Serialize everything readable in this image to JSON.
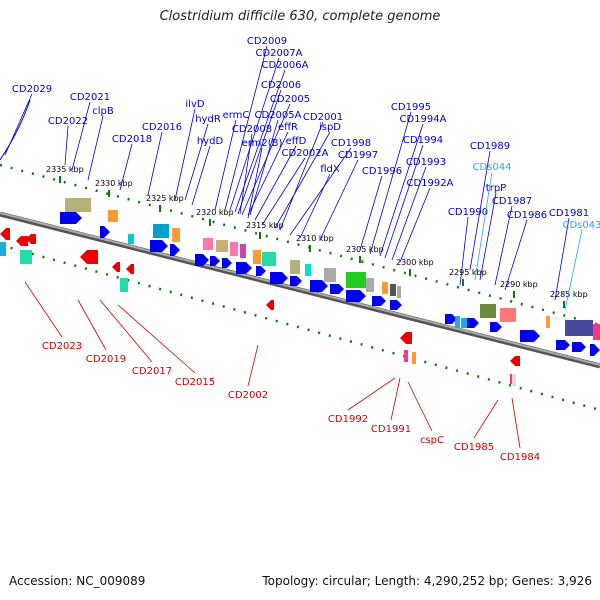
{
  "title": "Clostridium difficile 630, complete genome",
  "accession": "Accession: NC_009089",
  "summary": "Topology: circular; Length: 4,290,252 bp; Genes: 3,926",
  "colors": {
    "forward": "#0000ee",
    "reverse": "#ee0000",
    "backbone": "#888888",
    "ruler": "#117711",
    "rna": "#22aadd"
  },
  "scale_labels": [
    "2335 kbp",
    "2330 kbp",
    "2325 kbp",
    "2320 kbp",
    "2315 kbp",
    "2310 kbp",
    "2305 kbp",
    "2300 kbp",
    "2295 kbp",
    "2290 kbp",
    "2285 kbp"
  ],
  "forward_labels": [
    "CD2029",
    "CD2022",
    "CD2021",
    "clpB",
    "CD2018",
    "CD2016",
    "ilvD",
    "hydR",
    "hydD",
    "ermC",
    "CD2009",
    "CD2007A",
    "CD2006A",
    "CD2006",
    "CD2005",
    "CD2008",
    "effR",
    "erm2(B)",
    "CD2005A",
    "effD",
    "CD2002A",
    "ispD",
    "CD2001",
    "CD1998",
    "fldX",
    "CD1997",
    "CD1996",
    "CD1995",
    "CD1994A",
    "CD1994",
    "CD1993",
    "CD1992A",
    "CD1989",
    "CD1990",
    "trpP",
    "CD1987",
    "CD1986",
    "CD1981"
  ],
  "rna_labels": [
    "CDs044",
    "CDs043"
  ],
  "reverse_labels": [
    "CD2023",
    "CD2019",
    "CD2017",
    "CD2015",
    "CD2002",
    "CD1992",
    "CD1991",
    "cspC",
    "CD1985",
    "CD1984"
  ]
}
